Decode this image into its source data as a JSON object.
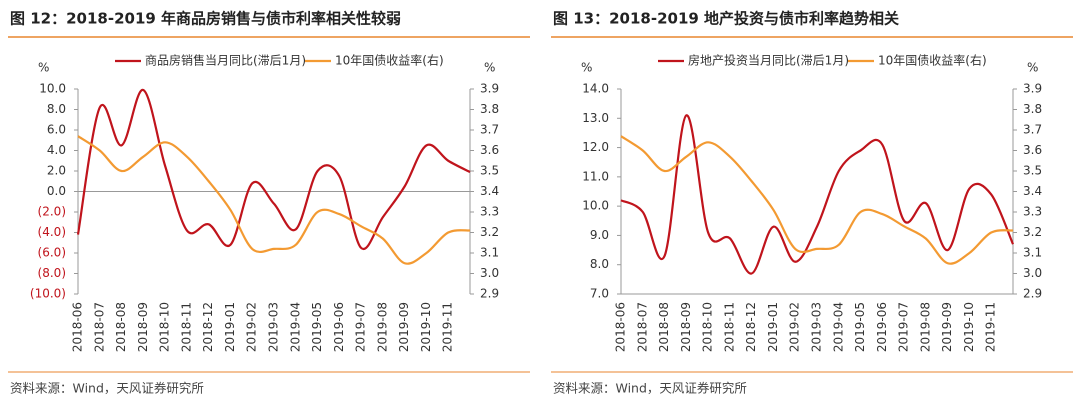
{
  "chart_data": [
    {
      "type": "line",
      "title": "图 12：2018-2019 年商品房销售与债市利率相关性较弱",
      "y_label": "%",
      "y2_label": "%",
      "source": "资料来源：Wind，天风证券研究所",
      "categories": [
        "2018-06",
        "2018-07",
        "2018-08",
        "2018-09",
        "2018-10",
        "2018-11",
        "2018-12",
        "2019-01",
        "2019-02",
        "2019-03",
        "2019-04",
        "2019-05",
        "2019-06",
        "2019-07",
        "2019-08",
        "2019-09",
        "2019-10",
        "2019-11",
        null
      ],
      "series": [
        {
          "name": "商品房销售当月同比(滞后1月)",
          "color": "#c0141c",
          "values": [
            -4.2,
            8.2,
            4.5,
            9.9,
            2.5,
            -3.8,
            -3.2,
            -5.2,
            0.8,
            -1.2,
            -3.7,
            2.0,
            1.5,
            -5.5,
            -2.5,
            0.5,
            4.5,
            3.0,
            1.9
          ]
        },
        {
          "name": "10年国债收益率(右)",
          "color": "#f39a32",
          "axis": "y2",
          "values": [
            3.67,
            3.6,
            3.5,
            3.57,
            3.64,
            3.57,
            3.45,
            3.31,
            3.12,
            3.12,
            3.14,
            3.3,
            3.29,
            3.23,
            3.17,
            3.05,
            3.1,
            3.2,
            3.21
          ]
        }
      ],
      "ylim": [
        -10,
        10
      ],
      "yticks": [
        {
          "value": 10,
          "label": "10.0"
        },
        {
          "value": 8,
          "label": "8.0"
        },
        {
          "value": 6,
          "label": "6.0"
        },
        {
          "value": 4,
          "label": "4.0"
        },
        {
          "value": 2,
          "label": "2.0"
        },
        {
          "value": 0,
          "label": "0.0"
        },
        {
          "value": -2,
          "label": "(2.0)"
        },
        {
          "value": -4,
          "label": "(4.0)"
        },
        {
          "value": -6,
          "label": "(6.0)"
        },
        {
          "value": -8,
          "label": "(8.0)"
        },
        {
          "value": -10,
          "label": "(10.0)"
        }
      ],
      "y2lim": [
        2.9,
        3.9
      ],
      "y2ticks": [
        3.9,
        3.8,
        3.7,
        3.6,
        3.5,
        3.4,
        3.3,
        3.2,
        3.1,
        {
          "value": 3,
          "label": "3.0"
        },
        2.9
      ],
      "legend": "top",
      "grid": false
    },
    {
      "type": "line",
      "title": "图 13：2018-2019 地产投资与债市利率趋势相关",
      "y_label": "%",
      "y2_label": "%",
      "source": "资料来源：Wind，天风证券研究所",
      "categories": [
        "2018-06",
        "2018-07",
        "2018-08",
        "2018-09",
        "2018-10",
        "2018-11",
        "2018-12",
        "2019-01",
        "2019-02",
        "2019-03",
        "2019-04",
        "2019-05",
        "2019-06",
        "2019-07",
        "2019-08",
        "2019-09",
        "2019-10",
        "2019-11",
        null
      ],
      "series": [
        {
          "name": "房地产投资当月同比(滞后1月)",
          "color": "#c0141c",
          "values": [
            10.2,
            9.8,
            8.3,
            13.1,
            9.1,
            8.9,
            7.7,
            9.3,
            8.1,
            9.3,
            11.2,
            11.9,
            12.1,
            9.5,
            10.1,
            8.5,
            10.6,
            10.4,
            8.7
          ]
        },
        {
          "name": "10年国债收益率(右)",
          "color": "#f39a32",
          "axis": "y2",
          "values": [
            3.67,
            3.6,
            3.5,
            3.57,
            3.64,
            3.57,
            3.45,
            3.31,
            3.12,
            3.12,
            3.14,
            3.3,
            3.29,
            3.23,
            3.17,
            3.05,
            3.1,
            3.2,
            3.21
          ]
        }
      ],
      "ylim": [
        7,
        14
      ],
      "yticks": [
        {
          "value": 14,
          "label": "14.0"
        },
        {
          "value": 13,
          "label": "13.0"
        },
        {
          "value": 12,
          "label": "12.0"
        },
        {
          "value": 11,
          "label": "11.0"
        },
        {
          "value": 10,
          "label": "10.0"
        },
        {
          "value": 9,
          "label": "9.0"
        },
        {
          "value": 8,
          "label": "8.0"
        },
        {
          "value": 7,
          "label": "7.0"
        }
      ],
      "y2lim": [
        2.9,
        3.9
      ],
      "y2ticks": [
        3.9,
        3.8,
        3.7,
        3.6,
        3.5,
        3.4,
        3.3,
        3.2,
        3.1,
        {
          "value": 3,
          "label": "3.0"
        },
        2.9
      ],
      "legend": "top",
      "grid": false
    }
  ]
}
